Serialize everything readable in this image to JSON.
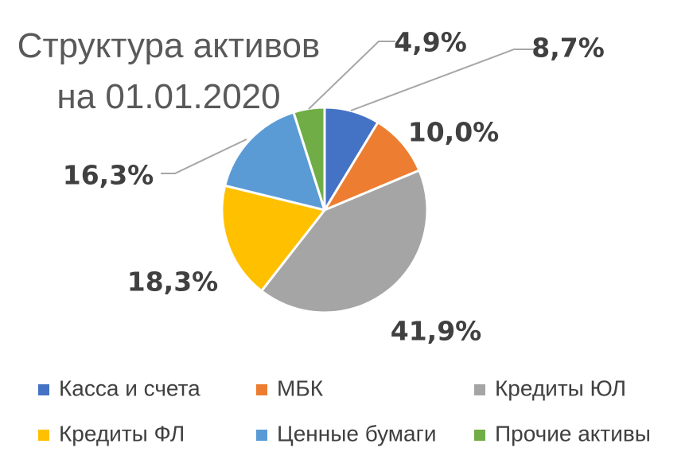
{
  "chart_data": {
    "type": "pie",
    "title_lines": [
      "Структура активов",
      "на 01.01.2020"
    ],
    "slices": [
      {
        "name": "Касса и счета",
        "value": 8.7,
        "label": "8,7%",
        "color": "#4472C4"
      },
      {
        "name": "МБК",
        "value": 10.0,
        "label": "10,0%",
        "color": "#ED7D31"
      },
      {
        "name": "Кредиты ЮЛ",
        "value": 41.9,
        "label": "41,9%",
        "color": "#A5A5A5"
      },
      {
        "name": "Кредиты ФЛ",
        "value": 18.3,
        "label": "18,3%",
        "color": "#FFC000"
      },
      {
        "name": "Ценные бумаги",
        "value": 16.3,
        "label": "16,3%",
        "color": "#5B9BD5"
      },
      {
        "name": "Прочие активы",
        "value": 4.9,
        "label": "4,9%",
        "color": "#70AD47"
      }
    ],
    "legend_position": "bottom",
    "label_color": "#404040",
    "leader_line_color": "#A6A6A6"
  }
}
